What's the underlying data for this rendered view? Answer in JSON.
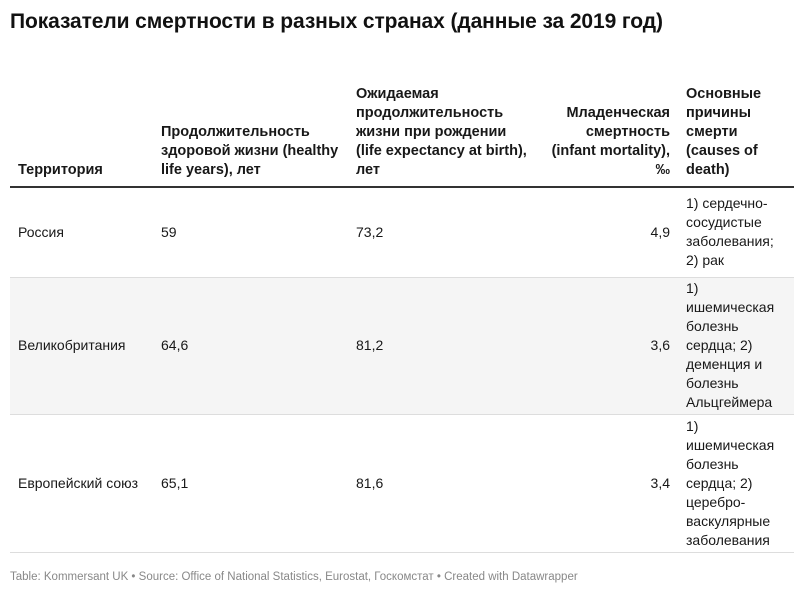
{
  "title": "Показатели смертности в разных странах (данные за 2019 год)",
  "chart_data": {
    "type": "table",
    "title": "Показатели смертности в разных странах (данные за 2019 год)",
    "columns": [
      "Территория",
      "Продолжительность здоровой жизни (healthy life years), лет",
      "Ожидаемая продолжительность жизни при рождении (life expectancy at birth), лет",
      "Младенческая смертность (infant mortality), ‰",
      "Основные причины смерти (causes of death)"
    ],
    "rows": [
      [
        "Россия",
        "59",
        "73,2",
        "4,9",
        "1) сердечно-сосудистые заболевания; 2) рак"
      ],
      [
        "Великобритания",
        "64,6",
        "81,2",
        "3,6",
        "1) ишемическая болезнь сердца; 2) деменция и болезнь Альцгеймера"
      ],
      [
        "Европейский союз",
        "65,1",
        "81,6",
        "3,4",
        "1) ишемическая болезнь сердца; 2) церебро-васкулярные заболевания"
      ]
    ]
  },
  "footer": "Table: Kommersant UK • Source: Office of National Statistics, Eurostat, Госкомстат • Created with Datawrapper",
  "colors": {
    "header_rule": "#333333",
    "row_stripe": "#f5f5f5",
    "row_divider": "#dddddd",
    "footer_text": "#888888"
  }
}
